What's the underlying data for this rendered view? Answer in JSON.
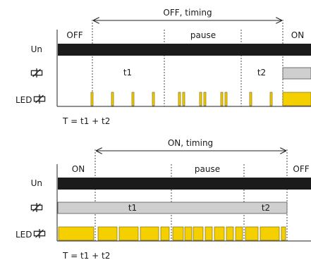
{
  "panels": [
    {
      "id": "top",
      "span_label": "OFF, timing",
      "state_labels": [
        "OFF",
        "pause",
        "ON"
      ],
      "rows": {
        "un": "Un",
        "led": "LED"
      },
      "t1": "t1",
      "t2": "t2",
      "formula": "T = t1 + t2"
    },
    {
      "id": "bottom",
      "span_label": "ON, timing",
      "state_labels": [
        "ON",
        "pause",
        "OFF"
      ],
      "rows": {
        "un": "Un",
        "led": "LED"
      },
      "t1": "t1",
      "t2": "t2",
      "formula": "T = t1 + t2"
    }
  ],
  "colors": {
    "un_bar": "#1b1b1b",
    "relay_bar": "#cfcfcf",
    "led": "#f5d000"
  },
  "icons": {
    "relay": "relay-coil-icon"
  }
}
